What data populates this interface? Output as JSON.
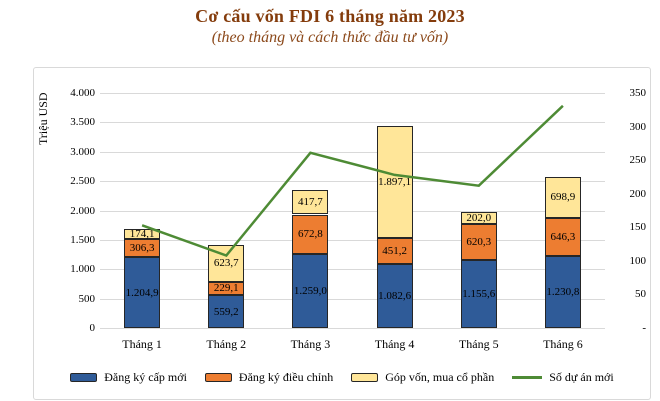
{
  "header": {
    "title": "Cơ cấu vốn FDI 6 tháng năm 2023",
    "subtitle": "(theo tháng và cách thức đầu tư vốn)"
  },
  "colors": {
    "title_text": "#843C0C",
    "new_registration_blue": "#2F5B98",
    "adjusted_registration_orange": "#ED7D31",
    "capital_contribution_yellow": "#FFE699",
    "line_green": "#4E8B35",
    "gridline_gray": "#D9D9D9"
  },
  "chart_data": {
    "type": "bar",
    "subtype": "stacked-bar-with-line",
    "categories": [
      "Tháng 1",
      "Tháng 2",
      "Tháng 3",
      "Tháng 4",
      "Tháng 5",
      "Tháng 6"
    ],
    "series": [
      {
        "name": "Đăng ký cấp mới",
        "kind": "bar",
        "color": "#2F5B98",
        "values": [
          1204.9,
          559.2,
          1259.0,
          1082.6,
          1155.6,
          1230.8
        ],
        "labels": [
          "1.204,9",
          "559,2",
          "1.259,0",
          "1.082,6",
          "1.155,6",
          "1.230,8"
        ]
      },
      {
        "name": "Đăng ký điều chỉnh",
        "kind": "bar",
        "color": "#ED7D31",
        "values": [
          306.3,
          229.1,
          672.8,
          451.2,
          620.3,
          646.3
        ],
        "labels": [
          "306,3",
          "229,1",
          "672,8",
          "451,2",
          "620,3",
          "646,3"
        ]
      },
      {
        "name": "Góp vốn, mua cổ phần",
        "kind": "bar",
        "color": "#FFE699",
        "values": [
          174.1,
          623.7,
          417.7,
          1897.1,
          202.0,
          698.9
        ],
        "labels": [
          "174,1",
          "623,7",
          "417,7",
          "1.897,1",
          "202,0",
          "698,9"
        ]
      },
      {
        "name": "Số dự án mới",
        "kind": "line",
        "color": "#4E8B35",
        "axis": "right",
        "values": [
          153,
          108,
          261,
          228,
          212,
          331
        ]
      }
    ],
    "left_axis": {
      "title": "Triệu USD",
      "min": 0,
      "max": 4000,
      "step": 500,
      "tick_labels": [
        "0",
        "500",
        "1.000",
        "1.500",
        "2.000",
        "2.500",
        "3.000",
        "3.500",
        "4.000"
      ]
    },
    "right_axis": {
      "min": 0,
      "max": 350,
      "step": 50,
      "tick_labels": [
        "-",
        "50",
        "100",
        "150",
        "200",
        "250",
        "300",
        "350"
      ]
    },
    "grid": true,
    "legend_position": "bottom"
  }
}
